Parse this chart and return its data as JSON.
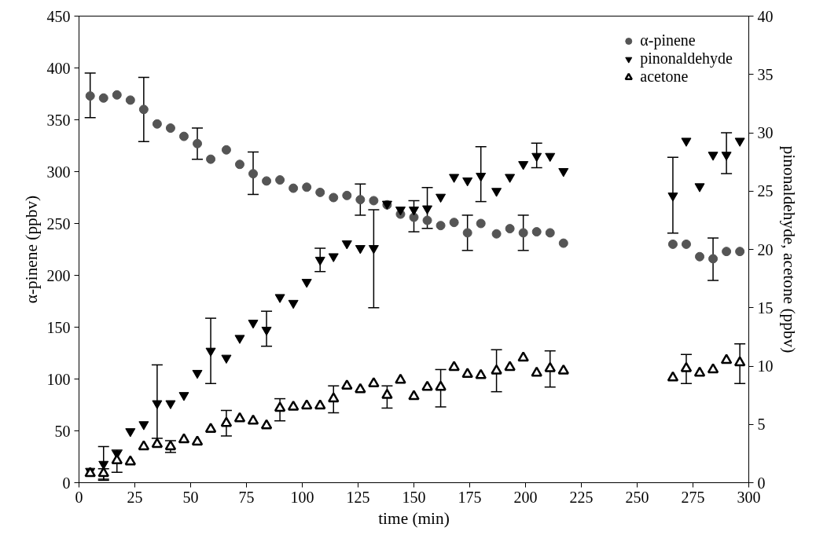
{
  "chart_data": {
    "type": "scatter",
    "xlabel": "time (min)",
    "ylabel": "α-pinene (ppbv)",
    "y2label": "pinonaldehyde, acetone (ppbv)",
    "xlim": [
      0,
      300
    ],
    "xticks": [
      0,
      25,
      50,
      75,
      100,
      125,
      150,
      175,
      200,
      225,
      250,
      275,
      300
    ],
    "ylim": [
      0,
      450
    ],
    "yticks": [
      0,
      50,
      100,
      150,
      200,
      250,
      300,
      350,
      400,
      450
    ],
    "y2lim": [
      0,
      40
    ],
    "y2ticks": [
      0,
      5,
      10,
      15,
      20,
      25,
      30,
      35,
      40
    ],
    "grid": false,
    "legend": "top right",
    "x": [
      5,
      11,
      17,
      23,
      29,
      35,
      41,
      47,
      53,
      59,
      66,
      72,
      78,
      84,
      90,
      96,
      102,
      108,
      114,
      120,
      126,
      132,
      138,
      144,
      150,
      156,
      162,
      168,
      174,
      180,
      187,
      193,
      199,
      205,
      211,
      217,
      266,
      272,
      278,
      284,
      290,
      296
    ],
    "series": [
      {
        "name": "α-pinene",
        "color": "#555555",
        "marker": "circle",
        "values": [
          373,
          371,
          374,
          369,
          360,
          346,
          342,
          334,
          327,
          312,
          321,
          307,
          298,
          291,
          292,
          284,
          285,
          280,
          275,
          277,
          273,
          272,
          268,
          259,
          256,
          253,
          248,
          251,
          241,
          250,
          240,
          245,
          241,
          242,
          241,
          231,
          230,
          230,
          218,
          216,
          223,
          223
        ],
        "errors": [
          [
            352,
            395
          ],
          null,
          null,
          null,
          [
            329,
            391
          ],
          null,
          null,
          null,
          [
            312,
            342
          ],
          null,
          null,
          null,
          [
            278,
            319
          ],
          null,
          null,
          null,
          null,
          null,
          null,
          null,
          [
            258,
            288
          ],
          null,
          null,
          null,
          [
            242,
            272
          ],
          null,
          null,
          null,
          [
            224,
            258
          ],
          null,
          null,
          null,
          [
            224,
            258
          ],
          null,
          null,
          null,
          null,
          null,
          null,
          [
            195,
            236
          ],
          null,
          null
        ]
      },
      {
        "name": "pinonaldehyde",
        "color": "#000000",
        "axis": "y2",
        "values": [
          1.0,
          1.6,
          2.5,
          4.4,
          5.0,
          6.8,
          6.8,
          7.5,
          9.4,
          11.3,
          10.7,
          12.4,
          13.7,
          13.1,
          15.9,
          15.4,
          17.2,
          19.1,
          19.4,
          20.5,
          20.1,
          20.1,
          23.9,
          23.4,
          23.4,
          23.5,
          24.5,
          26.2,
          25.9,
          26.3,
          25.0,
          26.2,
          27.3,
          28.0,
          28.0,
          26.7,
          24.6,
          29.3,
          25.4,
          28.1,
          28.1,
          29.3
        ],
        "errors": [
          null,
          [
            0.2,
            3.1
          ],
          null,
          null,
          null,
          [
            3.8,
            10.1
          ],
          null,
          null,
          null,
          [
            8.5,
            14.1
          ],
          null,
          null,
          null,
          [
            11.7,
            14.7
          ],
          null,
          null,
          null,
          [
            18.1,
            20.1
          ],
          null,
          null,
          null,
          [
            15.0,
            23.4
          ],
          null,
          null,
          null,
          [
            21.8,
            25.3
          ],
          null,
          null,
          null,
          [
            24.1,
            28.8
          ],
          null,
          null,
          null,
          [
            27.0,
            29.1
          ],
          null,
          null,
          [
            21.4,
            27.9
          ],
          null,
          null,
          null,
          [
            26.5,
            30.0
          ],
          null
        ]
      },
      {
        "name": "acetone",
        "color": "#000000",
        "marker": "triangle",
        "axis": "y2",
        "values": [
          0.8,
          0.8,
          1.9,
          1.8,
          3.1,
          3.3,
          3.1,
          3.7,
          3.5,
          4.6,
          5.1,
          5.5,
          5.3,
          4.9,
          6.4,
          6.5,
          6.6,
          6.6,
          7.2,
          8.3,
          8.0,
          8.5,
          7.5,
          8.8,
          7.4,
          8.2,
          8.2,
          9.9,
          9.3,
          9.2,
          9.6,
          9.9,
          10.7,
          9.4,
          9.8,
          9.6,
          9.0,
          9.8,
          9.4,
          9.7,
          10.5,
          10.3
        ],
        "errors": [
          null,
          [
            0.3,
            1.2
          ],
          [
            0.9,
            2.8
          ],
          null,
          null,
          null,
          [
            2.6,
            3.6
          ],
          null,
          null,
          null,
          [
            4.0,
            6.2
          ],
          null,
          null,
          null,
          [
            5.3,
            7.2
          ],
          null,
          null,
          null,
          [
            6.0,
            8.3
          ],
          null,
          null,
          null,
          [
            6.4,
            8.3
          ],
          null,
          null,
          null,
          [
            6.5,
            9.7
          ],
          null,
          null,
          null,
          [
            7.8,
            11.4
          ],
          null,
          null,
          null,
          [
            8.2,
            11.3
          ],
          null,
          null,
          [
            8.5,
            11.0
          ],
          null,
          null,
          null,
          [
            8.5,
            11.9
          ]
        ]
      }
    ]
  }
}
